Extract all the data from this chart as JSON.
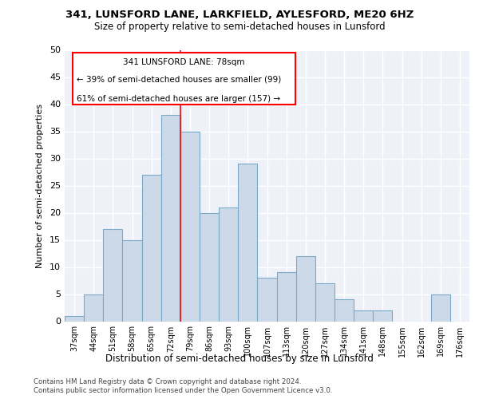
{
  "title1": "341, LUNSFORD LANE, LARKFIELD, AYLESFORD, ME20 6HZ",
  "title2": "Size of property relative to semi-detached houses in Lunsford",
  "xlabel": "Distribution of semi-detached houses by size in Lunsford",
  "ylabel": "Number of semi-detached properties",
  "footer1": "Contains HM Land Registry data © Crown copyright and database right 2024.",
  "footer2": "Contains public sector information licensed under the Open Government Licence v3.0.",
  "categories": [
    "37sqm",
    "44sqm",
    "51sqm",
    "58sqm",
    "65sqm",
    "72sqm",
    "79sqm",
    "86sqm",
    "93sqm",
    "100sqm",
    "107sqm",
    "113sqm",
    "120sqm",
    "127sqm",
    "134sqm",
    "141sqm",
    "148sqm",
    "155sqm",
    "162sqm",
    "169sqm",
    "176sqm"
  ],
  "values": [
    1,
    5,
    17,
    15,
    27,
    38,
    35,
    20,
    21,
    29,
    8,
    9,
    12,
    7,
    4,
    2,
    2,
    0,
    0,
    5,
    0
  ],
  "bar_color": "#ccd9e8",
  "bar_edge_color": "#7aaac8",
  "vline_label": "341 LUNSFORD LANE: 78sqm",
  "smaller_pct": "39% of semi-detached houses are smaller (99)",
  "larger_pct": "61% of semi-detached houses are larger (157)",
  "ylim": [
    0,
    50
  ],
  "yticks": [
    0,
    5,
    10,
    15,
    20,
    25,
    30,
    35,
    40,
    45,
    50
  ],
  "bg_color": "#eef2f8",
  "grid_color": "#ffffff"
}
